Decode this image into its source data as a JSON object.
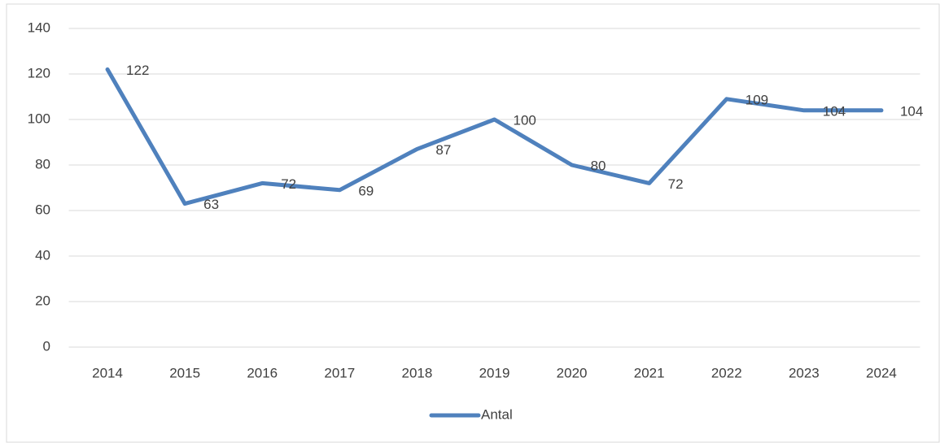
{
  "chart_data": {
    "type": "line",
    "categories": [
      "2014",
      "2015",
      "2016",
      "2017",
      "2018",
      "2019",
      "2020",
      "2021",
      "2022",
      "2023",
      "2024"
    ],
    "series": [
      {
        "name": "Antal",
        "color": "#4f81bd",
        "values": [
          122,
          63,
          72,
          69,
          87,
          100,
          80,
          72,
          109,
          104,
          104
        ]
      }
    ],
    "ylim": [
      0,
      140
    ],
    "yticks": [
      0,
      20,
      40,
      60,
      80,
      100,
      120,
      140
    ],
    "grid": true,
    "legend": "bottom",
    "data_labels": true
  }
}
